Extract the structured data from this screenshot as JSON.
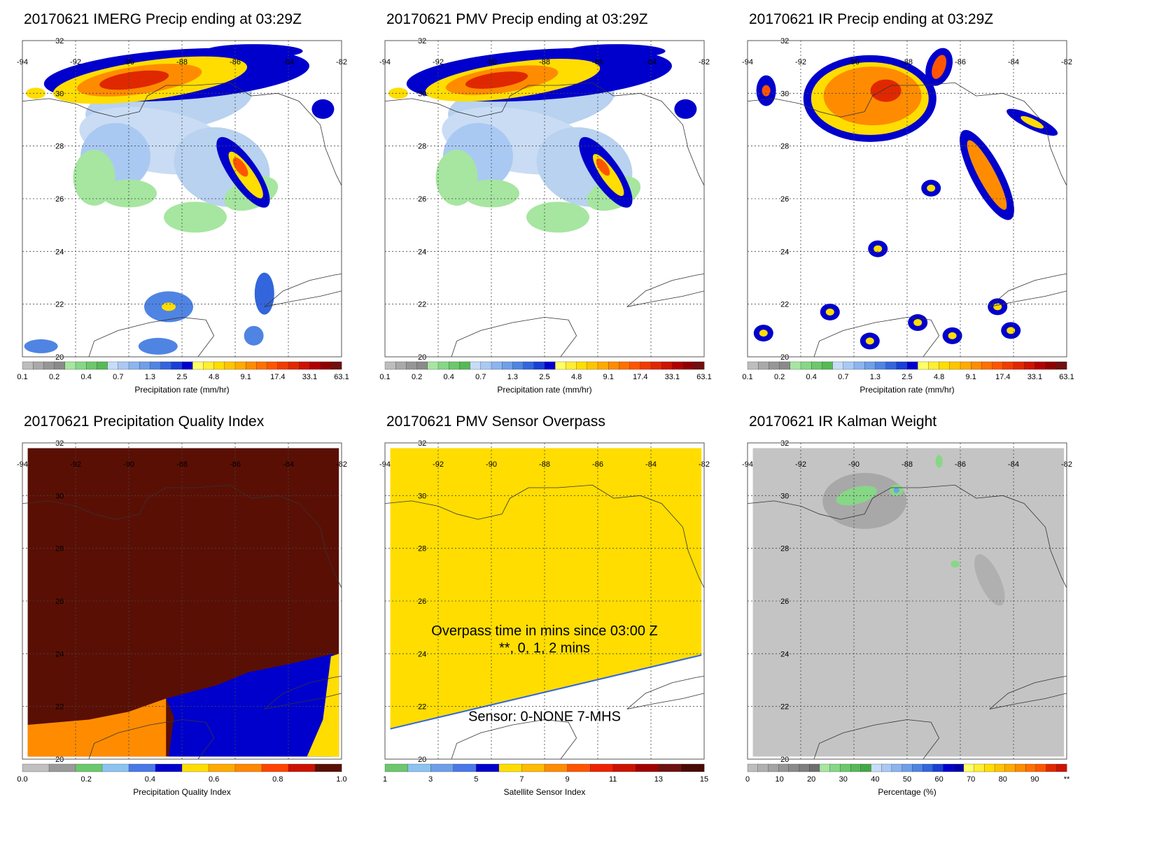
{
  "panels": [
    {
      "id": "imerg",
      "title": "20170621 IMERG Precip ending at 03:29Z",
      "legend_id": "precip",
      "field": "imerg"
    },
    {
      "id": "pmv",
      "title": "20170621 PMV Precip ending at 03:29Z",
      "legend_id": "precip",
      "field": "pmv"
    },
    {
      "id": "ir",
      "title": "20170621 IR Precip ending at 03:29Z",
      "legend_id": "precip",
      "field": "ir"
    },
    {
      "id": "pqi",
      "title": "20170621 Precipitation Quality Index",
      "legend_id": "pqi",
      "field": "pqi"
    },
    {
      "id": "overpass",
      "title": "20170621 PMV Sensor Overpass",
      "legend_id": "sensor",
      "field": "overpass",
      "overlay_lines": [
        "Overpass time in mins since 03:00 Z",
        "**, 0, 1, 2 mins",
        "Sensor:   0-NONE  7-MHS"
      ]
    },
    {
      "id": "kalman",
      "title": "20170621 IR Kalman Weight",
      "legend_id": "percent",
      "field": "kalman"
    }
  ],
  "map": {
    "lon_ticks": [
      "-94",
      "-92",
      "-90",
      "-88",
      "-86",
      "-84",
      "-82"
    ],
    "lat_ticks": [
      "32",
      "30",
      "28",
      "26",
      "24",
      "22",
      "20"
    ]
  },
  "legends": {
    "precip": {
      "title": "Precipitation rate (mm/hr)",
      "labels": [
        "0.1",
        "0.2",
        "0.4",
        "0.7",
        "1.3",
        "2.5",
        "4.8",
        "9.1",
        "17.4",
        "33.1",
        "63.1"
      ],
      "colors": [
        "#bdbdbd",
        "#a9a9a9",
        "#969696",
        "#8a8a8a",
        "#a6e6a0",
        "#86d786",
        "#6cc86c",
        "#56b956",
        "#c6dcf7",
        "#a9c9f3",
        "#8cb4ee",
        "#6f9fe9",
        "#4f84e3",
        "#3366dd",
        "#1a3fd6",
        "#0000cc",
        "#ffff66",
        "#ffee33",
        "#ffdd00",
        "#ffc400",
        "#ffaa00",
        "#ff8c00",
        "#ff7000",
        "#ff5500",
        "#f03c00",
        "#e02800",
        "#cc1400",
        "#b00000",
        "#900000",
        "#701010"
      ]
    },
    "pqi": {
      "title": "Precipitation Quality Index",
      "labels": [
        "0.0",
        "0.2",
        "0.4",
        "0.6",
        "0.8",
        "1.0"
      ],
      "colors": [
        "#c0c0c0",
        "#9a9a9a",
        "#6cc86c",
        "#8cc4f0",
        "#4a78e8",
        "#0000cc",
        "#ffdd00",
        "#ffaa00",
        "#ff8800",
        "#ff4400",
        "#cc1100",
        "#5a0f05"
      ]
    },
    "sensor": {
      "title": "Satellite Sensor Index",
      "labels": [
        "1",
        "3",
        "5",
        "7",
        "9",
        "11",
        "13",
        "15"
      ],
      "colors": [
        "#6cc86c",
        "#8cc4f0",
        "#6f9fe9",
        "#4a78e8",
        "#0000cc",
        "#ffdd00",
        "#ffbb00",
        "#ff8c00",
        "#ff5500",
        "#ee2200",
        "#cc1100",
        "#a00000",
        "#701010",
        "#4a0a05"
      ]
    },
    "percent": {
      "title": "Percentage (%)",
      "labels": [
        "0",
        "10",
        "20",
        "30",
        "40",
        "50",
        "60",
        "70",
        "80",
        "90",
        "**"
      ],
      "colors": [
        "#bdbdbd",
        "#b0b0b0",
        "#a3a3a3",
        "#969696",
        "#8a8a8a",
        "#7e7e7e",
        "#6e6e6e",
        "#a6e6a0",
        "#86d786",
        "#6cc86c",
        "#56b956",
        "#44a844",
        "#c6dcf7",
        "#a9c9f3",
        "#8cb4ee",
        "#6f9fe9",
        "#4f84e3",
        "#3366dd",
        "#1a3fd6",
        "#0000cc",
        "#0000aa",
        "#ffff66",
        "#ffee33",
        "#ffdd00",
        "#ffc400",
        "#ffaa00",
        "#ff8c00",
        "#ff7000",
        "#ff5500",
        "#e02800",
        "#cc1400"
      ]
    }
  },
  "colors": {
    "pqi_dark": "#5a0f05",
    "pqi_orange": "#ff8c00",
    "pqi_blue": "#0000cc",
    "pqi_yellow": "#ffdd00",
    "overpass_yellow": "#ffdd00",
    "kalman_gray": "#c4c4c4"
  }
}
